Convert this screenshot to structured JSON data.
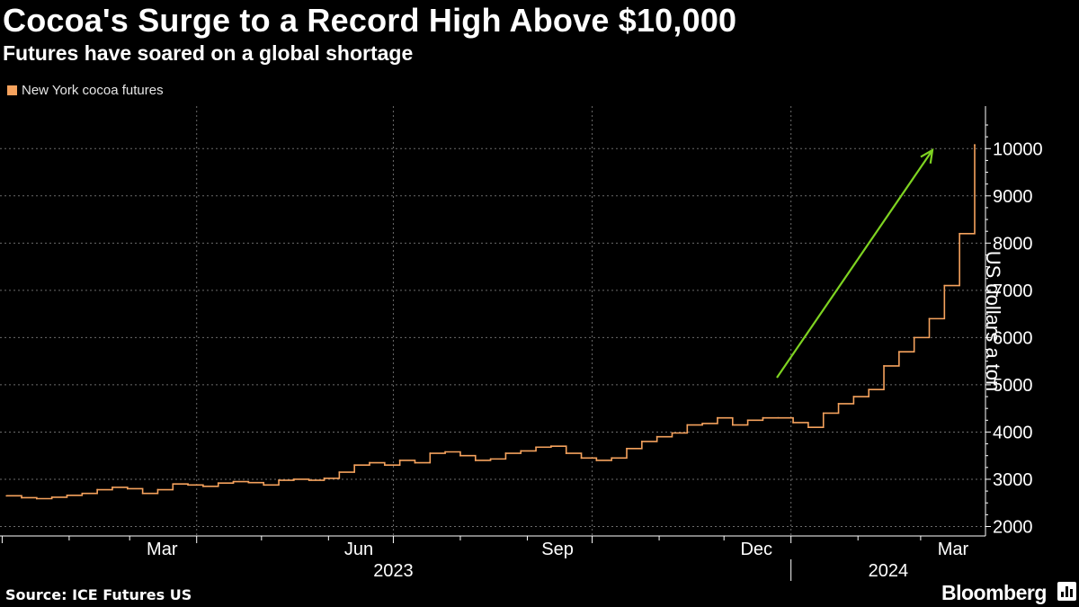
{
  "title": "Cocoa's Surge to a Record High Above $10,000",
  "subtitle": "Futures have soared on a global shortage",
  "source": "Source: ICE Futures US",
  "brand": "Bloomberg",
  "colors": {
    "series": "#f5a25d",
    "arrow": "#7ed321",
    "grid": "#6b6b6b",
    "background": "#000000"
  },
  "chart_data": {
    "type": "line",
    "title": "Cocoa's Surge to a Record High Above $10,000",
    "subtitle": "Futures have soared on a global shortage",
    "ylabel": "US dollars a ton",
    "xlabel": "",
    "ylim": [
      1800,
      10900
    ],
    "yticks": [
      2000,
      3000,
      4000,
      5000,
      6000,
      7000,
      8000,
      9000,
      10000
    ],
    "x_tick_labels": [
      "Mar",
      "Jun",
      "Sep",
      "Dec",
      "Mar"
    ],
    "year_labels": [
      "2023",
      "2024"
    ],
    "legend": "top-left",
    "grid": true,
    "series": [
      {
        "name": "New York cocoa futures",
        "x": [
          "2023-01-03",
          "2023-01-10",
          "2023-01-17",
          "2023-01-24",
          "2023-01-31",
          "2023-02-07",
          "2023-02-14",
          "2023-02-21",
          "2023-02-28",
          "2023-03-07",
          "2023-03-14",
          "2023-03-21",
          "2023-03-28",
          "2023-04-04",
          "2023-04-11",
          "2023-04-18",
          "2023-04-25",
          "2023-05-02",
          "2023-05-09",
          "2023-05-16",
          "2023-05-23",
          "2023-05-30",
          "2023-06-06",
          "2023-06-13",
          "2023-06-20",
          "2023-06-27",
          "2023-07-04",
          "2023-07-11",
          "2023-07-18",
          "2023-07-25",
          "2023-08-01",
          "2023-08-08",
          "2023-08-15",
          "2023-08-22",
          "2023-08-29",
          "2023-09-05",
          "2023-09-12",
          "2023-09-19",
          "2023-09-26",
          "2023-10-03",
          "2023-10-10",
          "2023-10-17",
          "2023-10-24",
          "2023-10-31",
          "2023-11-07",
          "2023-11-14",
          "2023-11-21",
          "2023-11-28",
          "2023-12-05",
          "2023-12-12",
          "2023-12-19",
          "2023-12-26",
          "2024-01-02",
          "2024-01-09",
          "2024-01-16",
          "2024-01-23",
          "2024-01-30",
          "2024-02-06",
          "2024-02-13",
          "2024-02-20",
          "2024-02-27",
          "2024-03-05",
          "2024-03-12",
          "2024-03-19",
          "2024-03-26"
        ],
        "values": [
          2650,
          2610,
          2590,
          2620,
          2660,
          2700,
          2780,
          2830,
          2800,
          2700,
          2780,
          2900,
          2880,
          2850,
          2920,
          2950,
          2930,
          2880,
          2980,
          3000,
          2980,
          3020,
          3150,
          3300,
          3350,
          3300,
          3400,
          3350,
          3550,
          3580,
          3500,
          3400,
          3430,
          3550,
          3600,
          3680,
          3700,
          3550,
          3450,
          3400,
          3450,
          3650,
          3800,
          3900,
          3980,
          4150,
          4180,
          4300,
          4150,
          4250,
          4300,
          4300,
          4200,
          4100,
          4400,
          4600,
          4750,
          4900,
          5400,
          5700,
          6000,
          6400,
          7100,
          8200,
          10080
        ]
      }
    ],
    "annotations": [
      "upward green arrow from Dec 2023 to Mar 2024"
    ]
  }
}
